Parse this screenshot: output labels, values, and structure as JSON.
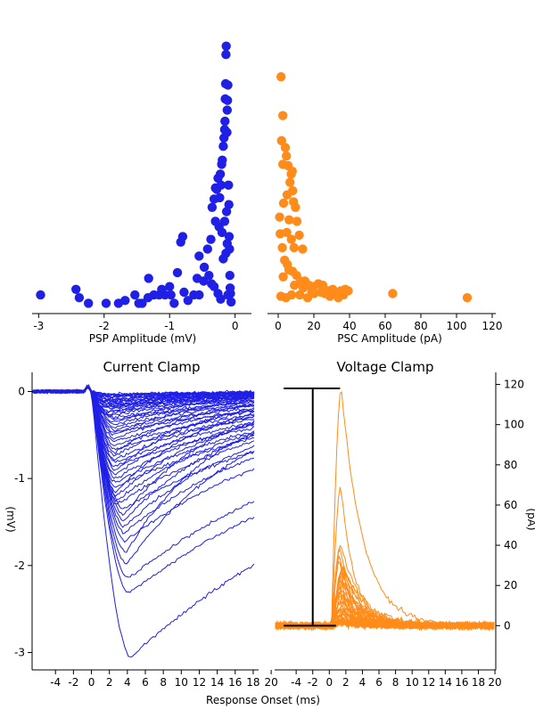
{
  "colors": {
    "psp": "#1f1fe6",
    "psc": "#ff8c1a",
    "bar": "#000000"
  },
  "chart_data": [
    {
      "type": "scatter",
      "xlabel": "PSP Amplitude (mV)",
      "xlim": [
        -3.1,
        0.25
      ],
      "xticks": [
        "-3",
        "-2",
        "-1",
        "0"
      ],
      "ylim": [
        0,
        1
      ],
      "yaxis_visible": false,
      "points": [
        [
          -2.97,
          0.035
        ],
        [
          -2.43,
          0.055
        ],
        [
          -2.38,
          0.025
        ],
        [
          -2.24,
          0.005
        ],
        [
          -1.97,
          0.005
        ],
        [
          -1.78,
          0.005
        ],
        [
          -1.68,
          0.015
        ],
        [
          -1.53,
          0.035
        ],
        [
          -1.47,
          0.005
        ],
        [
          -1.42,
          0.005
        ],
        [
          -1.33,
          0.025
        ],
        [
          -1.32,
          0.095
        ],
        [
          -1.24,
          0.035
        ],
        [
          -1.16,
          0.035
        ],
        [
          -1.07,
          0.035
        ],
        [
          -0.98,
          0.035
        ],
        [
          -0.93,
          0.005
        ],
        [
          -0.88,
          0.115
        ],
        [
          -0.83,
          0.225
        ],
        [
          -0.8,
          0.245
        ],
        [
          -0.78,
          0.045
        ],
        [
          -0.72,
          0.015
        ],
        [
          -0.63,
          0.035
        ],
        [
          -0.58,
          0.095
        ],
        [
          -0.55,
          0.035
        ],
        [
          -0.48,
          0.085
        ],
        [
          -0.42,
          0.2
        ],
        [
          -0.37,
          0.235
        ],
        [
          -0.35,
          0.35
        ],
        [
          -0.32,
          0.38
        ],
        [
          -0.3,
          0.42
        ],
        [
          -0.28,
          0.415
        ],
        [
          -0.26,
          0.455
        ],
        [
          -0.245,
          0.28
        ],
        [
          -0.235,
          0.385
        ],
        [
          -0.225,
          0.47
        ],
        [
          -0.215,
          0.43
        ],
        [
          -0.205,
          0.505
        ],
        [
          -0.195,
          0.52
        ],
        [
          -0.18,
          0.57
        ],
        [
          -0.17,
          0.6
        ],
        [
          -0.16,
          0.63
        ],
        [
          -0.155,
          0.66
        ],
        [
          -0.15,
          0.74
        ],
        [
          -0.145,
          0.795
        ],
        [
          -0.14,
          0.9
        ],
        [
          -0.135,
          0.93
        ],
        [
          -0.13,
          0.62
        ],
        [
          -0.125,
          0.62
        ],
        [
          -0.12,
          0.7
        ],
        [
          -0.115,
          0.735
        ],
        [
          -0.11,
          0.79
        ],
        [
          -0.1,
          0.43
        ],
        [
          -0.095,
          0.36
        ],
        [
          -0.09,
          0.245
        ],
        [
          -0.085,
          0.2
        ],
        [
          -0.08,
          0.105
        ],
        [
          -0.075,
          0.06
        ],
        [
          -0.07,
          0.04
        ],
        [
          -0.06,
          0.01
        ],
        [
          -0.55,
          0.175
        ],
        [
          -0.47,
          0.135
        ],
        [
          -0.4,
          0.105
        ],
        [
          -0.36,
          0.075
        ],
        [
          -0.32,
          0.065
        ],
        [
          -0.26,
          0.04
        ],
        [
          -0.22,
          0.02
        ],
        [
          -0.18,
          0.165
        ],
        [
          -0.14,
          0.185
        ],
        [
          -0.12,
          0.22
        ],
        [
          -0.2,
          0.26
        ],
        [
          -0.16,
          0.3
        ],
        [
          -0.13,
          0.335
        ],
        [
          -0.3,
          0.3
        ],
        [
          -0.11,
          0.035
        ],
        [
          -1.0,
          0.065
        ],
        [
          -1.12,
          0.055
        ]
      ]
    },
    {
      "type": "scatter",
      "xlabel": "PSC Amplitude (pA)",
      "xlim": [
        -6,
        122
      ],
      "xticks": [
        "0",
        "20",
        "40",
        "60",
        "80",
        "100",
        "120"
      ],
      "ylim": [
        0,
        1
      ],
      "yaxis_visible": false,
      "points": [
        [
          1.6,
          0.82
        ],
        [
          2.6,
          0.68
        ],
        [
          1.9,
          0.59
        ],
        [
          4.0,
          0.565
        ],
        [
          4.6,
          0.535
        ],
        [
          5.6,
          0.5
        ],
        [
          6.6,
          0.44
        ],
        [
          7.3,
          0.47
        ],
        [
          7.9,
          0.48
        ],
        [
          8.1,
          0.41
        ],
        [
          8.6,
          0.37
        ],
        [
          9.7,
          0.35
        ],
        [
          10.5,
          0.3
        ],
        [
          11.8,
          0.25
        ],
        [
          13.7,
          0.2
        ],
        [
          4.8,
          0.26
        ],
        [
          6.1,
          0.305
        ],
        [
          7.4,
          0.235
        ],
        [
          8.9,
          0.205
        ],
        [
          3.0,
          0.365
        ],
        [
          5.0,
          0.395
        ],
        [
          2.6,
          0.505
        ],
        [
          0.8,
          0.315
        ],
        [
          1.1,
          0.255
        ],
        [
          2.3,
          0.205
        ],
        [
          3.6,
          0.16
        ],
        [
          5.1,
          0.145
        ],
        [
          6.0,
          0.125
        ],
        [
          8.0,
          0.12
        ],
        [
          10.3,
          0.105
        ],
        [
          12.5,
          0.085
        ],
        [
          15.0,
          0.085
        ],
        [
          17.2,
          0.07
        ],
        [
          19.7,
          0.065
        ],
        [
          22.5,
          0.075
        ],
        [
          25.0,
          0.07
        ],
        [
          28.3,
          0.05
        ],
        [
          30.6,
          0.055
        ],
        [
          32.7,
          0.04
        ],
        [
          35.1,
          0.05
        ],
        [
          37.6,
          0.055
        ],
        [
          39.2,
          0.05
        ],
        [
          1.5,
          0.03
        ],
        [
          4.3,
          0.025
        ],
        [
          7.5,
          0.035
        ],
        [
          12.1,
          0.035
        ],
        [
          16.5,
          0.025
        ],
        [
          20.2,
          0.04
        ],
        [
          24.0,
          0.045
        ],
        [
          29.0,
          0.03
        ],
        [
          33.7,
          0.025
        ],
        [
          36.6,
          0.035
        ],
        [
          64.2,
          0.04
        ],
        [
          106.0,
          0.025
        ],
        [
          2.8,
          0.1
        ],
        [
          9.1,
          0.07
        ],
        [
          14.0,
          0.06
        ],
        [
          18.8,
          0.045
        ],
        [
          26.2,
          0.04
        ]
      ]
    },
    {
      "type": "line",
      "title": "Current Clamp",
      "ylabel": "(mV)",
      "xlim": [
        -6.6,
        18.6
      ],
      "ylim": [
        -3.2,
        0.22
      ],
      "xticks": [
        "-4",
        "-2",
        "0",
        "2",
        "4",
        "6",
        "8",
        "10",
        "12",
        "14",
        "16",
        "18",
        "20"
      ],
      "yticks": [
        "0",
        "-1",
        "-2",
        "-3"
      ],
      "series_count": 62,
      "peak_amplitudes_mV": [
        -3.05,
        -2.32,
        -2.15,
        -1.98,
        -1.85,
        -1.72,
        -1.62,
        -1.55,
        -1.48,
        -1.42,
        -1.35,
        -1.3,
        -1.25,
        -1.2,
        -1.15,
        -1.1,
        -1.05,
        -1.0,
        -0.95,
        -0.9,
        -0.86,
        -0.82,
        -0.78,
        -0.74,
        -0.7,
        -0.66,
        -0.62,
        -0.58,
        -0.54,
        -0.5,
        -0.47,
        -0.44,
        -0.41,
        -0.38,
        -0.35,
        -0.32,
        -0.3,
        -0.28,
        -0.26,
        -0.24,
        -0.22,
        -0.2,
        -0.19,
        -0.18,
        -0.17,
        -0.16,
        -0.15,
        -0.14,
        -0.13,
        -0.12,
        -0.11,
        -0.1,
        -0.09,
        -0.08,
        -0.07,
        -0.06,
        -0.05,
        -0.05,
        -0.04,
        -0.04,
        -0.03,
        -0.03
      ],
      "baseline_mV": 0.0,
      "time_range_ms": [
        -6.5,
        18.2
      ]
    },
    {
      "type": "line",
      "title": "Voltage Clamp",
      "ylabel": "(pA)",
      "xlim": [
        -6.6,
        20.1
      ],
      "ylim": [
        -22,
        126
      ],
      "xticks": [
        "-4",
        "-2",
        "0",
        "2",
        "4",
        "6",
        "8",
        "10",
        "12",
        "14",
        "16",
        "18",
        "20"
      ],
      "yticks": [
        "0",
        "20",
        "40",
        "60",
        "80",
        "100",
        "120"
      ],
      "series_count": 59,
      "peak_amplitudes_pA": [
        118,
        70,
        40,
        38,
        36,
        34,
        32,
        30,
        29,
        28,
        27,
        26,
        25,
        24,
        23,
        22,
        21,
        20,
        19,
        18,
        17,
        16,
        15,
        14,
        13,
        12,
        11,
        10,
        10,
        9,
        9,
        8,
        8,
        7,
        7,
        6,
        6,
        5,
        5,
        5,
        4,
        4,
        4,
        3,
        3,
        3,
        2,
        2,
        2,
        2,
        2,
        1,
        1,
        1,
        1,
        1,
        1,
        1,
        1
      ],
      "baseline_pA": 0,
      "time_range_ms": [
        -6.5,
        20
      ],
      "scale_bar": {
        "x_ms": -2,
        "from_pA": 0,
        "to_pA": 118
      }
    }
  ],
  "shared_xlabel": "Response Onset (ms)"
}
